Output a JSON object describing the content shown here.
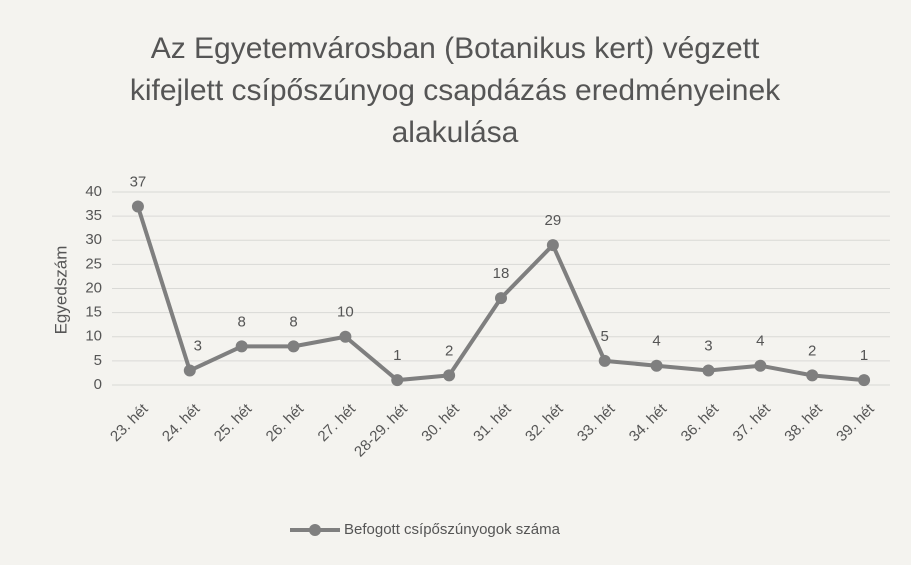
{
  "chart_data": {
    "type": "line",
    "title": "Az Egyetemvárosban (Botanikus kert) végzett kifejlett csípőszúnyog csapdázás eredményeinek alakulása",
    "y_label": "Egyedszám",
    "categories": [
      "23. hét",
      "24. hét",
      "25. hét",
      "26. hét",
      "27. hét",
      "28-29. hét",
      "30. hét",
      "31. hét",
      "32. hét",
      "33. hét",
      "34. hét",
      "36. hét",
      "37. hét",
      "38. hét",
      "39. hét"
    ],
    "series": [
      {
        "name": "Befogott csípőszúnyogok száma",
        "color": "#7f7f7f",
        "values": [
          37,
          3,
          8,
          8,
          10,
          1,
          2,
          18,
          29,
          5,
          4,
          3,
          4,
          2,
          1
        ]
      }
    ],
    "ylim": [
      0,
      40
    ],
    "yticks": [
      0,
      5,
      10,
      15,
      20,
      25,
      30,
      35,
      40
    ],
    "grid": true,
    "legend": "bottom"
  }
}
